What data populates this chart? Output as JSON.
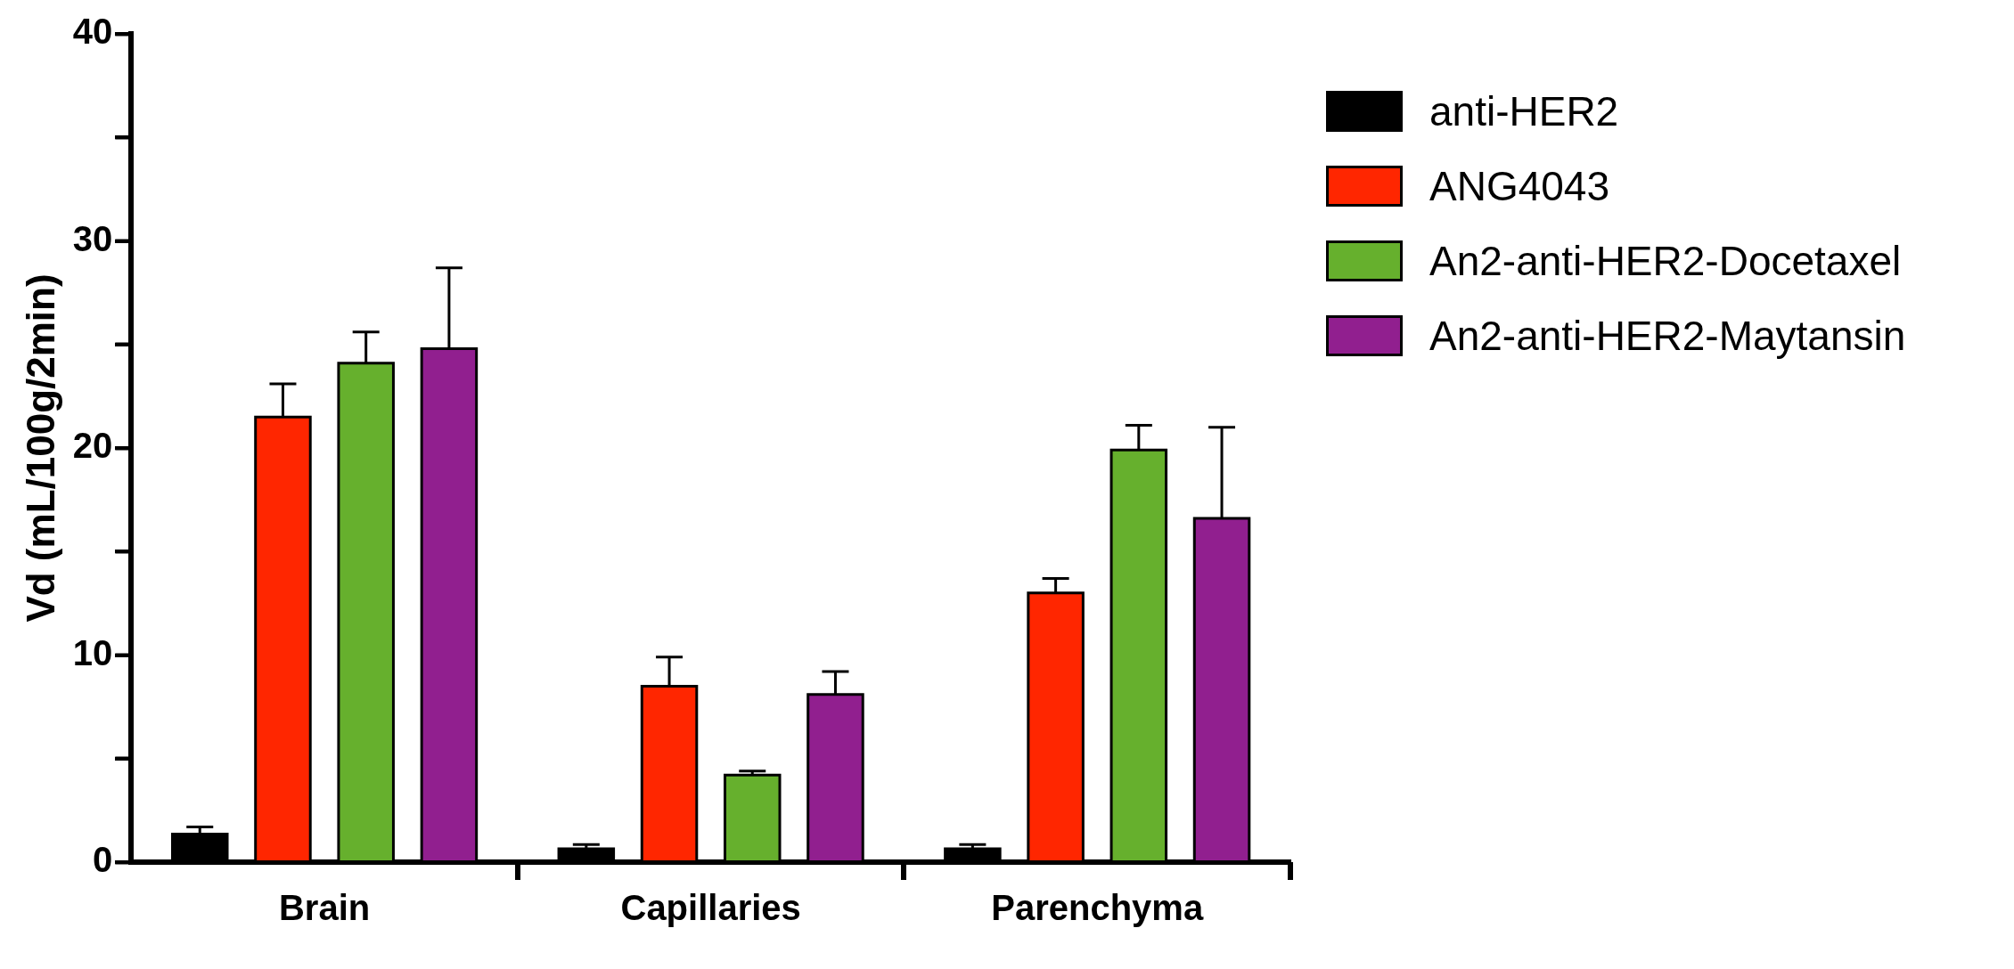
{
  "chart_data": {
    "type": "bar",
    "ylabel": "Vd (mL/100g/2min)",
    "categories": [
      "Brain",
      "Capillaries",
      "Parenchyma"
    ],
    "series": [
      {
        "name": "anti-HER2",
        "color": "#000000",
        "values": [
          1.35,
          0.65,
          0.65
        ],
        "errors": [
          [
            1.35,
            1.7
          ],
          [
            0.65,
            0.85
          ],
          [
            0.65,
            0.85
          ]
        ]
      },
      {
        "name": "ANG4043",
        "color": "#ff2600",
        "values": [
          21.5,
          8.5,
          13.0
        ],
        "errors": [
          [
            21.5,
            23.1
          ],
          [
            8.5,
            9.9
          ],
          [
            13.0,
            13.7
          ]
        ]
      },
      {
        "name": "An2-anti-HER2-Docetaxel",
        "color": "#66b02d",
        "values": [
          24.1,
          4.2,
          19.9
        ],
        "errors": [
          [
            24.1,
            25.6
          ],
          [
            4.2,
            4.4
          ],
          [
            19.9,
            21.1
          ]
        ]
      },
      {
        "name": "An2-anti-HER2-Maytansin",
        "color": "#911f8f",
        "values": [
          24.8,
          8.1,
          16.6
        ],
        "errors": [
          [
            24.8,
            28.7
          ],
          [
            8.1,
            9.2
          ],
          [
            16.6,
            21.0
          ]
        ]
      }
    ],
    "ylim": [
      0,
      40
    ],
    "yticks": [
      0,
      {
        "value": 5,
        "label": null
      },
      10,
      {
        "value": 15,
        "label": null
      },
      20,
      {
        "value": 25,
        "label": null
      },
      30,
      {
        "value": 35,
        "label": null
      },
      40
    ],
    "grid": false,
    "legend": "right"
  }
}
